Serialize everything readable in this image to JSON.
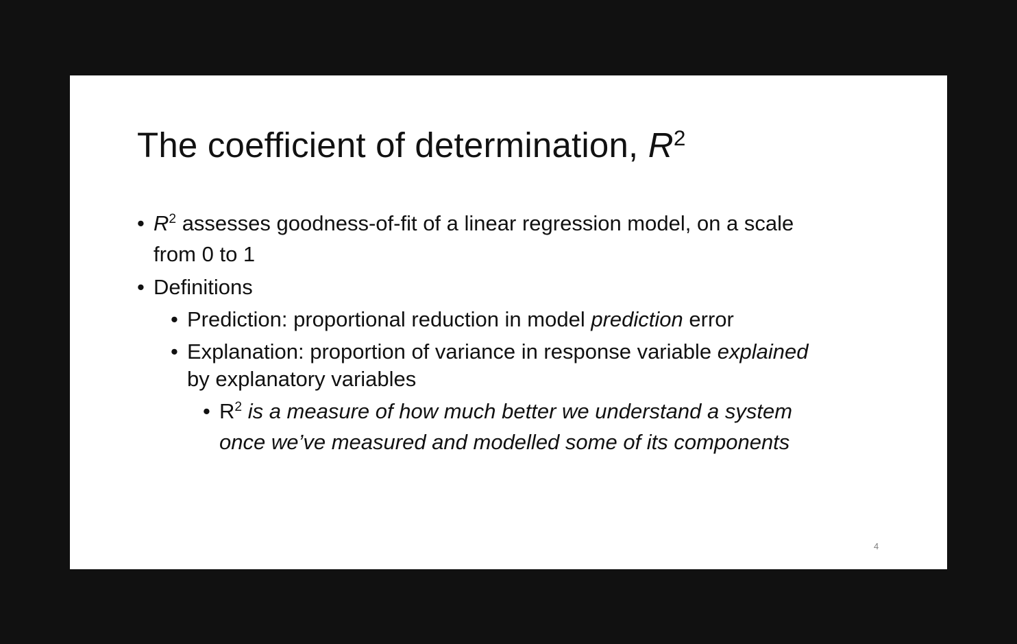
{
  "slide": {
    "title": {
      "text": "The coefficient of determination, ",
      "symbol": "R",
      "exponent": "2"
    },
    "bullets": {
      "b1": {
        "symbol": "R",
        "exponent": "2",
        "line1": " assesses goodness-of-fit of a linear regression model, on a scale",
        "line2": "from 0 to 1"
      },
      "b2": {
        "text": "Definitions"
      },
      "b3": {
        "text_before": "Prediction: proportional reduction in model ",
        "emph": "prediction",
        "text_after": " error"
      },
      "b4": {
        "text_before": "Explanation: proportion of variance in response variable ",
        "emph": "explained",
        "line2": "by explanatory variables"
      },
      "b5": {
        "symbol": "R",
        "exponent": "2",
        "line1": " is a measure of how much better we understand a system",
        "line2": "once we’ve measured and modelled some of its components"
      }
    },
    "page_number": "4"
  }
}
